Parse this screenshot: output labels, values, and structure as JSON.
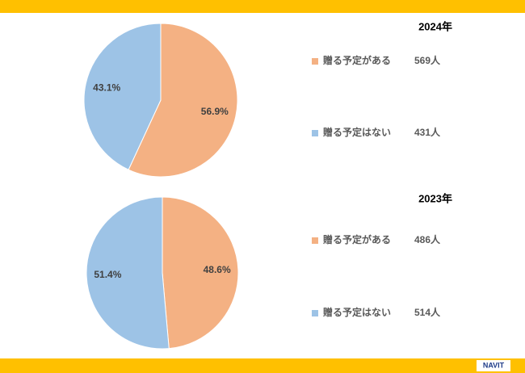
{
  "chart_data": [
    {
      "type": "pie",
      "title": "2024年",
      "categories": [
        "贈る予定がある",
        "贈る予定はない"
      ],
      "values": [
        56.9,
        43.1
      ],
      "value_labels": [
        "56.9%",
        "43.1%"
      ],
      "count_labels": [
        "569人",
        "431人"
      ],
      "colors": [
        "#F4B183",
        "#9DC3E6"
      ]
    },
    {
      "type": "pie",
      "title": "2023年",
      "categories": [
        "贈る予定がある",
        "贈る予定はない"
      ],
      "values": [
        48.6,
        51.4
      ],
      "value_labels": [
        "48.6%",
        "51.4%"
      ],
      "count_labels": [
        "486人",
        "514人"
      ],
      "colors": [
        "#F4B183",
        "#9DC3E6"
      ]
    }
  ],
  "logo": "NAVIT"
}
